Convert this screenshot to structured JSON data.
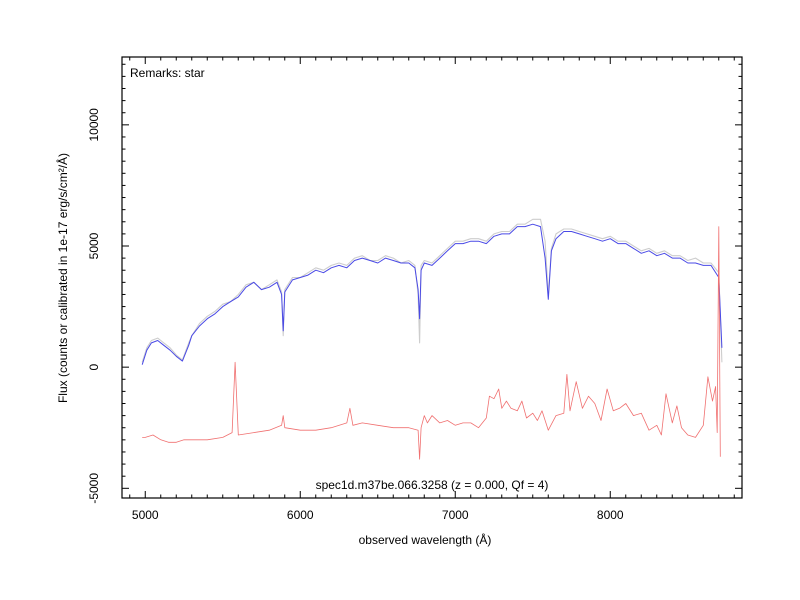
{
  "chart_data": {
    "type": "line",
    "xlabel": "observed wavelength (Å)",
    "ylabel": "Flux (counts or calibrated in 1e-17 erg/s/cm²/Å)",
    "xlim": [
      4850,
      8850
    ],
    "ylim": [
      -5400,
      12800
    ],
    "x_ticks": [
      5000,
      6000,
      7000,
      8000
    ],
    "x_tick_labels": [
      "5000",
      "6000",
      "7000",
      "8000"
    ],
    "y_ticks": [
      -5000,
      0,
      5000,
      10000
    ],
    "y_tick_labels": [
      "-5000",
      "0",
      "5000",
      "10000"
    ],
    "annotations": {
      "remarks": "Remarks: star",
      "spec_id": "spec1d.m37be.066.3258 (z = 0.000, Qf = 4)"
    },
    "colors": {
      "raw": "#c8c8c8",
      "smoothed": "#4a4ae6",
      "error": "#f07070"
    },
    "series": [
      {
        "role": "raw",
        "x": [
          4980,
          5010,
          5040,
          5080,
          5120,
          5160,
          5200,
          5240,
          5280,
          5300,
          5350,
          5400,
          5450,
          5500,
          5550,
          5600,
          5650,
          5700,
          5750,
          5800,
          5850,
          5880,
          5890,
          5900,
          5950,
          6000,
          6050,
          6100,
          6150,
          6200,
          6250,
          6300,
          6350,
          6400,
          6450,
          6500,
          6550,
          6600,
          6650,
          6700,
          6740,
          6760,
          6770,
          6780,
          6800,
          6850,
          6900,
          6950,
          7000,
          7050,
          7100,
          7150,
          7200,
          7250,
          7300,
          7350,
          7400,
          7450,
          7500,
          7550,
          7580,
          7600,
          7620,
          7650,
          7700,
          7750,
          7800,
          7850,
          7900,
          7950,
          8000,
          8050,
          8100,
          8150,
          8200,
          8250,
          8300,
          8350,
          8400,
          8450,
          8500,
          8550,
          8600,
          8650,
          8700,
          8720
        ],
        "y": [
          200,
          800,
          1100,
          1200,
          1000,
          800,
          500,
          300,
          1000,
          1300,
          1800,
          2100,
          2300,
          2600,
          2700,
          3000,
          3400,
          3500,
          3200,
          3400,
          3600,
          3100,
          1300,
          3200,
          3700,
          3700,
          3900,
          4100,
          4000,
          4200,
          4300,
          4200,
          4500,
          4600,
          4400,
          4400,
          4600,
          4500,
          4300,
          4400,
          4200,
          3000,
          1000,
          4200,
          4400,
          4300,
          4600,
          4900,
          5200,
          5200,
          5300,
          5300,
          5200,
          5500,
          5600,
          5600,
          5900,
          5900,
          6100,
          6100,
          5200,
          3000,
          4900,
          5500,
          5700,
          5700,
          5600,
          5500,
          5400,
          5300,
          5400,
          5200,
          5200,
          5000,
          4800,
          4900,
          4700,
          4800,
          4600,
          4600,
          4400,
          4500,
          4300,
          4300,
          3900,
          200
        ]
      },
      {
        "role": "smoothed",
        "x": [
          4980,
          5010,
          5040,
          5080,
          5120,
          5160,
          5200,
          5240,
          5280,
          5300,
          5350,
          5400,
          5450,
          5500,
          5550,
          5600,
          5650,
          5700,
          5750,
          5800,
          5850,
          5880,
          5890,
          5900,
          5950,
          6000,
          6050,
          6100,
          6150,
          6200,
          6250,
          6300,
          6350,
          6400,
          6450,
          6500,
          6550,
          6600,
          6650,
          6700,
          6740,
          6760,
          6770,
          6780,
          6800,
          6850,
          6900,
          6950,
          7000,
          7050,
          7100,
          7150,
          7200,
          7250,
          7300,
          7350,
          7400,
          7450,
          7500,
          7550,
          7580,
          7600,
          7620,
          7650,
          7700,
          7750,
          7800,
          7850,
          7900,
          7950,
          8000,
          8050,
          8100,
          8150,
          8200,
          8250,
          8300,
          8350,
          8400,
          8450,
          8500,
          8550,
          8600,
          8650,
          8700,
          8720
        ],
        "y": [
          100,
          700,
          1000,
          1100,
          900,
          700,
          450,
          250,
          900,
          1300,
          1700,
          2000,
          2200,
          2500,
          2700,
          2900,
          3300,
          3500,
          3200,
          3300,
          3500,
          3000,
          1500,
          3100,
          3600,
          3700,
          3800,
          4000,
          3900,
          4100,
          4200,
          4100,
          4400,
          4500,
          4400,
          4300,
          4500,
          4400,
          4300,
          4300,
          4100,
          3200,
          2000,
          4000,
          4300,
          4200,
          4500,
          4800,
          5100,
          5100,
          5200,
          5200,
          5100,
          5400,
          5500,
          5500,
          5800,
          5800,
          5900,
          5800,
          4500,
          2800,
          4800,
          5300,
          5600,
          5600,
          5500,
          5400,
          5300,
          5200,
          5300,
          5100,
          5100,
          4900,
          4700,
          4800,
          4600,
          4700,
          4500,
          4500,
          4300,
          4300,
          4200,
          4200,
          3700,
          800
        ]
      },
      {
        "role": "error",
        "x": [
          4980,
          5000,
          5050,
          5100,
          5150,
          5200,
          5250,
          5300,
          5400,
          5500,
          5560,
          5580,
          5600,
          5700,
          5800,
          5880,
          5890,
          5900,
          6000,
          6100,
          6200,
          6300,
          6320,
          6340,
          6400,
          6500,
          6600,
          6700,
          6760,
          6770,
          6780,
          6800,
          6820,
          6850,
          6900,
          6950,
          7000,
          7050,
          7100,
          7150,
          7200,
          7220,
          7250,
          7280,
          7300,
          7330,
          7360,
          7400,
          7430,
          7460,
          7500,
          7530,
          7560,
          7600,
          7650,
          7700,
          7720,
          7740,
          7780,
          7820,
          7860,
          7900,
          7940,
          7980,
          8020,
          8060,
          8100,
          8150,
          8200,
          8250,
          8300,
          8330,
          8360,
          8400,
          8430,
          8460,
          8500,
          8550,
          8600,
          8630,
          8660,
          8680,
          8690,
          8700,
          8710
        ],
        "y": [
          -2900,
          -2900,
          -2800,
          -3000,
          -3100,
          -3100,
          -3000,
          -3000,
          -3000,
          -2900,
          -2700,
          200,
          -2800,
          -2700,
          -2600,
          -2400,
          -2000,
          -2500,
          -2600,
          -2600,
          -2500,
          -2300,
          -1700,
          -2400,
          -2300,
          -2400,
          -2500,
          -2500,
          -2600,
          -3800,
          -2500,
          -2000,
          -2300,
          -2000,
          -2300,
          -2200,
          -2400,
          -2300,
          -2300,
          -2500,
          -2100,
          -1200,
          -1300,
          -900,
          -1700,
          -1400,
          -1700,
          -1800,
          -1400,
          -2100,
          -1900,
          -2200,
          -1800,
          -2600,
          -2000,
          -1900,
          -300,
          -1800,
          -600,
          -1700,
          -1200,
          -1500,
          -2200,
          -900,
          -1800,
          -1700,
          -1500,
          -2000,
          -1900,
          -2600,
          -2400,
          -2800,
          -1100,
          -2300,
          -1600,
          -2500,
          -2800,
          -2900,
          -2400,
          -400,
          -1400,
          -800,
          -2700,
          5800,
          -3700
        ]
      }
    ]
  }
}
